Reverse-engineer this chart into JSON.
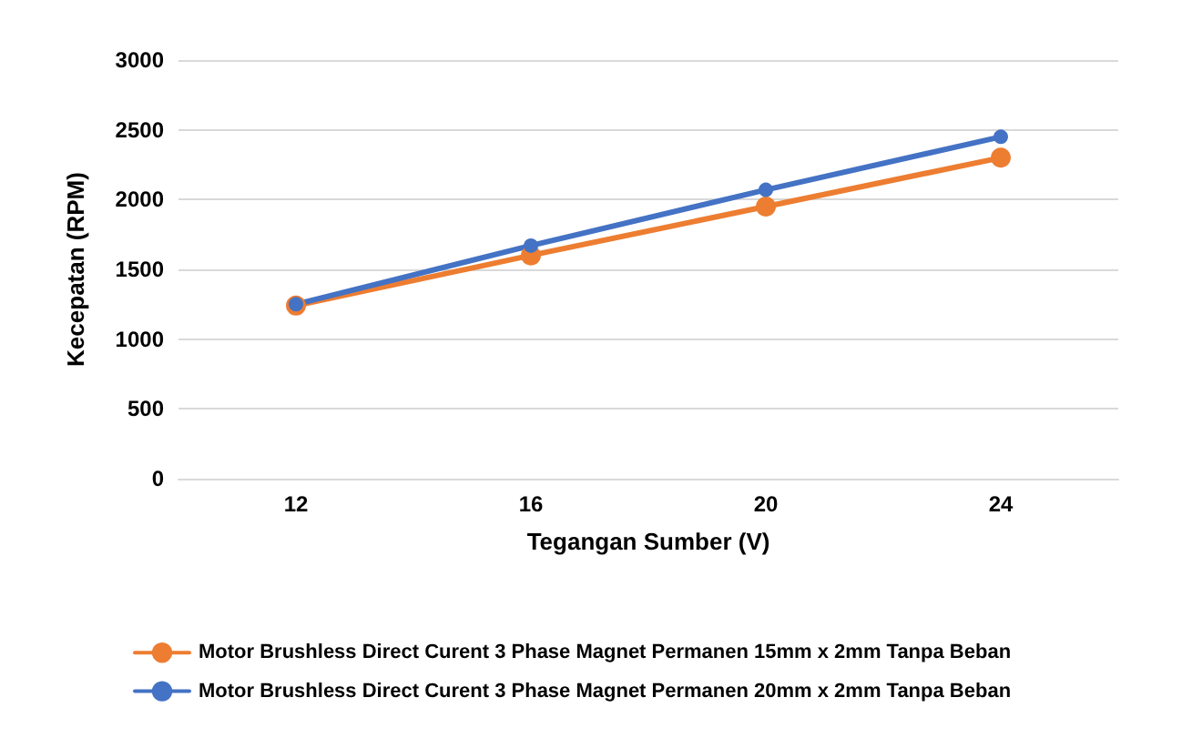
{
  "chart_data": {
    "type": "line",
    "xlabel": "Tegangan Sumber (V)",
    "ylabel": "Kecepatan (RPM)",
    "categories": [
      "12",
      "16",
      "20",
      "24"
    ],
    "series": [
      {
        "name": "Motor Brushless Direct Curent 3 Phase Magnet Permanen 15mm x 2mm Tanpa Beban",
        "color": "#ed7d31",
        "values": [
          1240,
          1600,
          1950,
          2300
        ]
      },
      {
        "name": "Motor Brushless Direct Curent 3 Phase Magnet Permanen 20mm x 2mm Tanpa Beban",
        "color": "#4472c4",
        "values": [
          1250,
          1670,
          2070,
          2450
        ]
      }
    ],
    "ylim": [
      0,
      3000
    ],
    "yticks": [
      0,
      500,
      1000,
      1500,
      2000,
      2500,
      3000
    ],
    "grid": "y",
    "legend": "bottom",
    "marker": "circle",
    "line_style": "solid"
  }
}
